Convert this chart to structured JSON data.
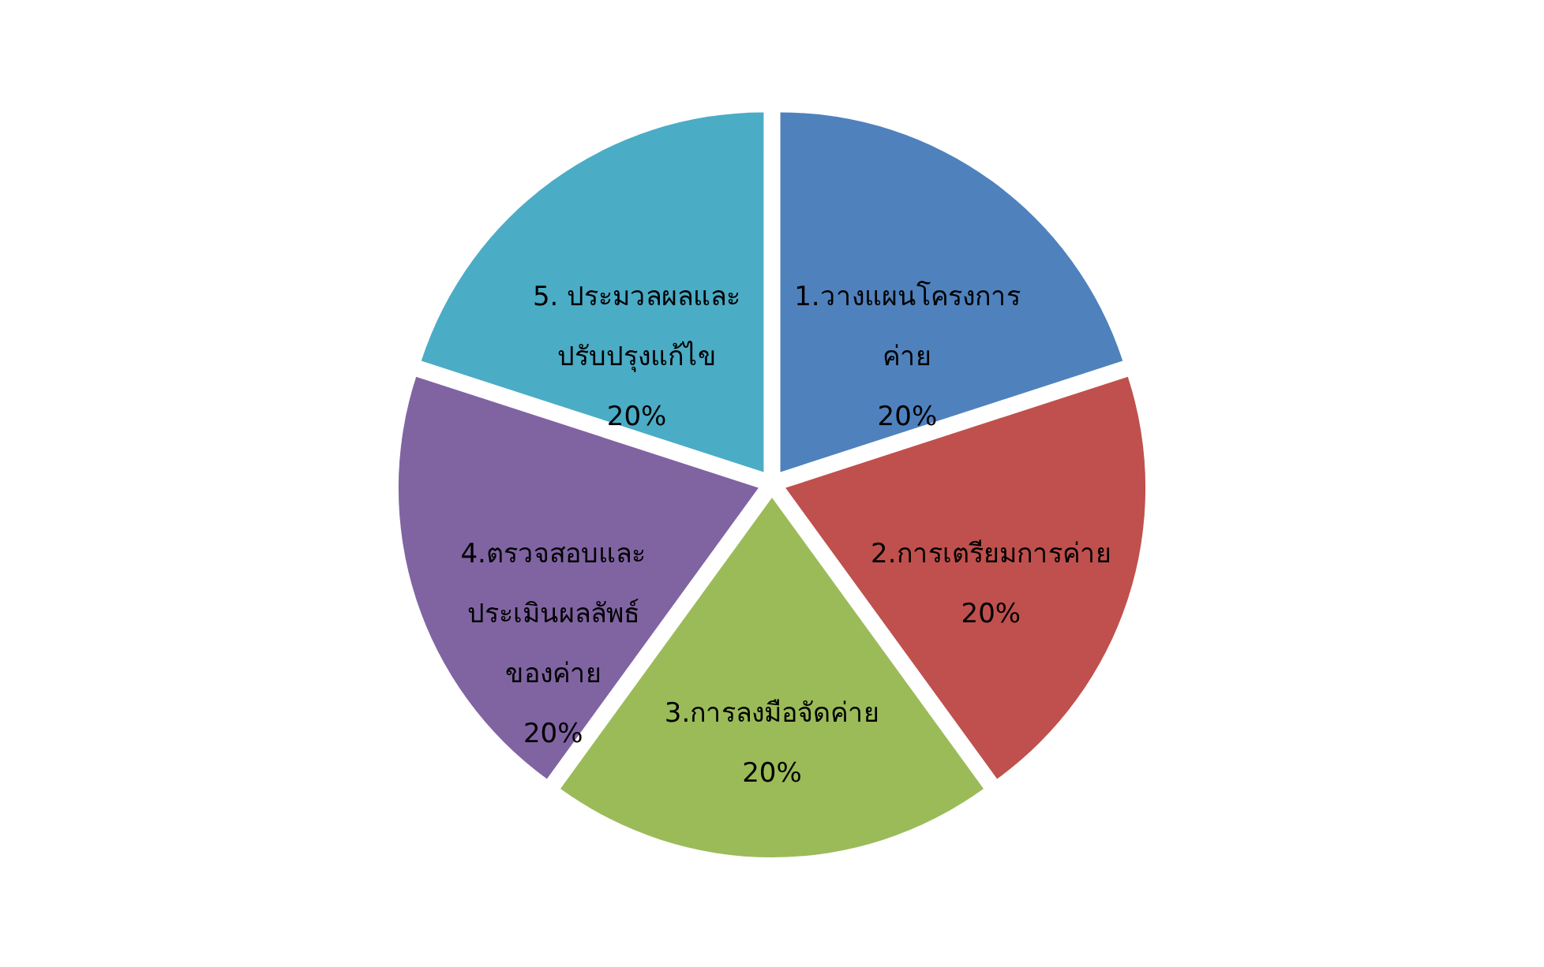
{
  "chart_data": {
    "type": "pie",
    "categories": [
      "1.วางแผนโครงการ\nค่าย",
      "2.การเตรียมการค่าย",
      "3.การลงมือจัดค่าย",
      "4.ตรวจสอบและ\nประเมินผลลัพธ์\nของค่าย",
      "5. ประมวลผลและ\nปรับปรุงแก้ไข"
    ],
    "values": [
      20,
      20,
      20,
      20,
      20
    ],
    "colors": [
      "#4f81bd",
      "#c0504d",
      "#9bbb59",
      "#8064a2",
      "#4bacc6"
    ],
    "value_labels": [
      "20%",
      "20%",
      "20%",
      "20%",
      "20%"
    ]
  }
}
